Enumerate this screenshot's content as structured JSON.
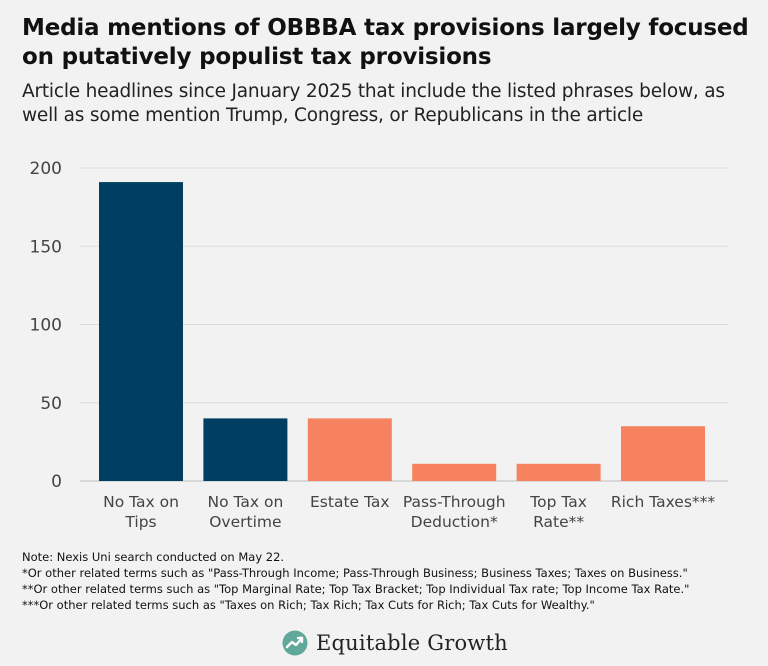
{
  "title": "Media mentions of OBBBA tax provisions largely focused on putatively populist tax provisions",
  "subtitle": "Article headlines since January 2025 that include the listed phrases below, as well as some mention Trump, Congress, or Republicans in the article",
  "chart_data": {
    "type": "bar",
    "categories": [
      [
        "No Tax on",
        "Tips"
      ],
      [
        "No Tax on",
        "Overtime"
      ],
      [
        "Estate Tax"
      ],
      [
        "Pass-Through",
        "Deduction*"
      ],
      [
        "Top Tax",
        "Rate**"
      ],
      [
        "Rich Taxes***"
      ]
    ],
    "values": [
      191,
      40,
      40,
      11,
      11,
      35
    ],
    "colors": [
      "#003f61",
      "#003f61",
      "#f7825f",
      "#f7825f",
      "#f7825f",
      "#f7825f"
    ],
    "yticks": [
      0,
      50,
      100,
      150,
      200
    ],
    "ylim": [
      0,
      200
    ],
    "grid": true
  },
  "notes": [
    "Note: Nexis Uni search conducted on May 22.",
    "*Or other related terms such as \"Pass-Through Income; Pass-Through Business; Business Taxes; Taxes on Business.\"",
    "**Or other related terms such as \"Top Marginal Rate; Top Tax Bracket; Top Individual Tax rate; Top Income Tax Rate.\"",
    "***Or other related terms such as \"Taxes on Rich; Tax Rich; Tax Cuts for Rich; Tax Cuts for Wealthy.\""
  ],
  "logo": {
    "text": "Equitable Growth",
    "icon": "equitable-growth-logo-icon",
    "color": "#5fa89a"
  }
}
